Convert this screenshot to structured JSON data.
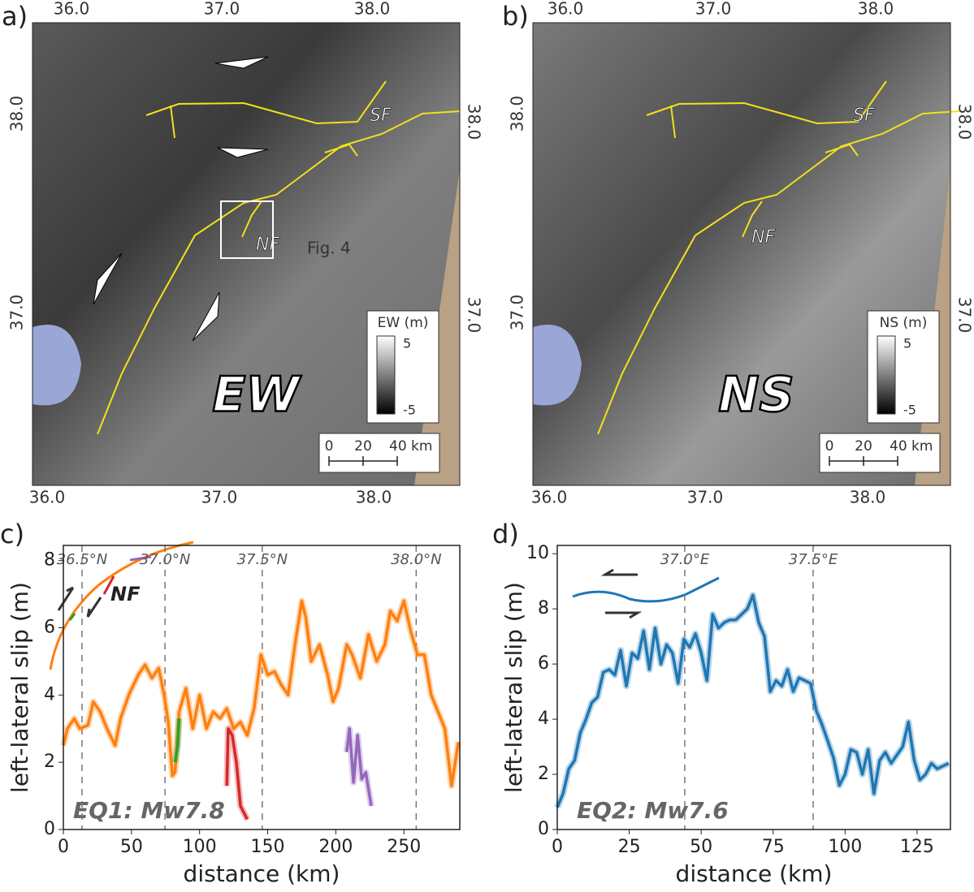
{
  "maps": [
    {
      "label": "a)",
      "top_ticks": [
        "36.0",
        "37.0",
        "38.0"
      ],
      "bottom_ticks": [
        "36.0",
        "37.0",
        "38.0"
      ],
      "left_ticks": [
        "38.0",
        "37.0"
      ],
      "right_ticks": [
        "38.0",
        "37.0"
      ],
      "component": "EW",
      "annotations": [
        "SF",
        "NF",
        "Fig. 4"
      ],
      "colorbar": {
        "title": "EW (m)",
        "ticks": [
          "5",
          "-5"
        ]
      },
      "scalebar": [
        "0",
        "20",
        "40 km"
      ]
    },
    {
      "label": "b)",
      "top_ticks": [
        "36.0",
        "37.0",
        "38.0"
      ],
      "bottom_ticks": [
        "36.0",
        "37.0",
        "38.0"
      ],
      "left_ticks": [
        "38.0",
        "37.0"
      ],
      "right_ticks": [
        "38.0",
        "37.0"
      ],
      "component": "NS",
      "annotations": [
        "SF",
        "NF"
      ],
      "colorbar": {
        "title": "NS (m)",
        "ticks": [
          "5",
          "-5"
        ]
      },
      "scalebar": [
        "0",
        "20",
        "40 km"
      ]
    }
  ],
  "chart_data": [
    {
      "type": "line",
      "panel_label": "c)",
      "xlabel": "distance (km)",
      "ylabel": "left-lateral slip (m)",
      "xlim": [
        0,
        291
      ],
      "ylim": [
        0,
        8.45
      ],
      "xticks": [
        0,
        50,
        100,
        150,
        200,
        250
      ],
      "yticks": [
        0,
        2,
        4,
        6,
        8
      ],
      "reference_lines": [
        {
          "value": 13.7,
          "label": "36.5°N"
        },
        {
          "value": 74.6,
          "label": "37.0°N"
        },
        {
          "value": 146,
          "label": "37.5°N"
        },
        {
          "value": 259,
          "label": "38.0°N"
        }
      ],
      "annotations": [
        "NF",
        "EQ1: Mw7.8"
      ],
      "series": [
        {
          "color": "#ff7f0e",
          "x": [
            0,
            3,
            8,
            12,
            18,
            22,
            27,
            32,
            38,
            42,
            48,
            55,
            60,
            65,
            70,
            74,
            77,
            80,
            82,
            85,
            90,
            95,
            100,
            105,
            110,
            115,
            120,
            125,
            130,
            135,
            140,
            145,
            150,
            155,
            160,
            165,
            170,
            175,
            178,
            182,
            188,
            194,
            198,
            202,
            208,
            212,
            218,
            224,
            230,
            236,
            240,
            245,
            250,
            255,
            260,
            265,
            270,
            275,
            280,
            285,
            290
          ],
          "values": [
            2.5,
            3.0,
            3.3,
            3.0,
            3.1,
            3.8,
            3.5,
            3.0,
            2.5,
            3.3,
            4.0,
            4.6,
            4.9,
            4.5,
            4.8,
            4.0,
            3.2,
            1.6,
            1.7,
            3.5,
            4.2,
            3.0,
            4.0,
            3.0,
            3.5,
            3.3,
            3.6,
            3.0,
            3.2,
            2.8,
            3.6,
            5.2,
            4.6,
            4.7,
            4.3,
            4.0,
            5.5,
            6.8,
            6.3,
            5.0,
            5.5,
            4.6,
            3.8,
            4.2,
            5.5,
            5.2,
            4.5,
            5.8,
            5.0,
            5.5,
            6.5,
            6.2,
            6.8,
            5.9,
            5.2,
            5.2,
            4.0,
            3.5,
            3.0,
            1.3,
            2.6
          ]
        },
        {
          "color": "#2ca02c",
          "x": [
            82,
            84,
            85
          ],
          "values": [
            2.0,
            2.5,
            3.3
          ]
        },
        {
          "color": "#d62728",
          "x": [
            120,
            121,
            124,
            127,
            130,
            135
          ],
          "values": [
            1.3,
            3.0,
            2.8,
            2.0,
            0.7,
            0.3
          ]
        },
        {
          "color": "#9467bd",
          "x": [
            208,
            210,
            213,
            216,
            219,
            222,
            226
          ],
          "values": [
            2.3,
            3.0,
            1.4,
            2.8,
            1.5,
            1.7,
            0.7
          ]
        }
      ]
    },
    {
      "type": "line",
      "panel_label": "d)",
      "xlabel": "distance (km)",
      "ylabel": "left-lateral slip (m)",
      "xlim": [
        0,
        136.6
      ],
      "ylim": [
        0,
        10.3
      ],
      "xticks": [
        0,
        25,
        50,
        75,
        100,
        125
      ],
      "yticks": [
        0,
        2,
        4,
        6,
        8,
        10
      ],
      "reference_lines": [
        {
          "value": 44.3,
          "label": "37.0°E"
        },
        {
          "value": 88.9,
          "label": "37.5°E"
        }
      ],
      "annotations": [
        "EQ2: Mw7.6"
      ],
      "series": [
        {
          "color": "#1f77b4",
          "x": [
            0,
            2,
            4,
            6,
            8,
            10,
            12,
            14,
            16,
            18,
            20,
            22,
            24,
            26,
            28,
            30,
            32,
            34,
            36,
            38,
            40,
            42,
            44,
            46,
            48,
            50,
            52,
            54,
            56,
            58,
            60,
            62,
            64,
            66,
            68,
            70,
            72,
            74,
            76,
            78,
            80,
            82,
            84,
            86,
            88,
            90,
            92,
            94,
            96,
            98,
            100,
            102,
            104,
            106,
            108,
            110,
            112,
            114,
            116,
            118,
            120,
            122,
            124,
            126,
            128,
            130,
            132,
            134,
            136
          ],
          "values": [
            0.8,
            1.3,
            2.2,
            2.5,
            3.5,
            4.0,
            4.6,
            4.8,
            5.7,
            5.8,
            5.6,
            6.5,
            5.2,
            6.4,
            6.2,
            7.2,
            5.8,
            7.3,
            6.0,
            6.7,
            6.4,
            5.3,
            6.9,
            6.6,
            7.1,
            6.4,
            5.4,
            7.8,
            7.3,
            7.5,
            7.6,
            7.6,
            7.8,
            8.0,
            8.5,
            7.5,
            7.0,
            5.0,
            5.4,
            5.2,
            5.8,
            5.0,
            5.5,
            5.4,
            5.3,
            4.3,
            3.8,
            3.2,
            2.6,
            1.6,
            2.0,
            2.9,
            2.8,
            2.0,
            2.9,
            1.3,
            2.5,
            2.8,
            2.4,
            2.7,
            3.0,
            3.9,
            2.5,
            1.8,
            2.0,
            2.4,
            2.2,
            2.3,
            2.4
          ]
        }
      ]
    }
  ]
}
